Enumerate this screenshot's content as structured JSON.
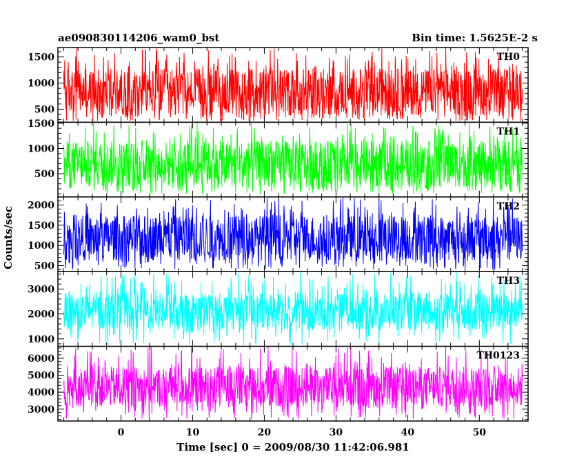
{
  "header": {
    "left": "ae090830114206_wam0_bst",
    "right": "Bin time: 1.5625E-2 s"
  },
  "chart_data": {
    "type": "line",
    "title": "ae090830114206_wam0_bst",
    "subtitle": "Bin time: 1.5625E-2 s",
    "xlabel": "Time [sec] 0 = 2009/08/30 11:42:06.981",
    "ylabel": "Counts/sec",
    "xlim": [
      -8.8,
      56.8
    ],
    "x_data_range": [
      -8.0,
      56.0
    ],
    "bin_time": 0.015625,
    "x_ticks": [
      0,
      10,
      20,
      30,
      40,
      50
    ],
    "x_tick_labels": [
      "0",
      "10",
      "20",
      "30",
      "40",
      "50"
    ],
    "grid": false,
    "panels": [
      {
        "name": "TH0",
        "color": "#ff0000",
        "ylim": [
          250,
          1680
        ],
        "y_ticks": [
          500,
          1000,
          1500
        ],
        "y_tick_labels": [
          "500",
          "1000",
          "1500"
        ],
        "typical_range": [
          380,
          1280
        ],
        "min": 270,
        "max": 1680
      },
      {
        "name": "TH1",
        "color": "#00ff00",
        "ylim": [
          40,
          1520
        ],
        "y_ticks": [
          500,
          1000,
          1500
        ],
        "y_tick_labels": [
          "500",
          "1000",
          "1500"
        ],
        "typical_range": [
          230,
          1150
        ],
        "min": 90,
        "max": 1520
      },
      {
        "name": "TH2",
        "color": "#0000ff",
        "ylim": [
          350,
          2200
        ],
        "y_ticks": [
          500,
          1000,
          1500,
          2000
        ],
        "y_tick_labels": [
          "500",
          "1000",
          "1500",
          "2000"
        ],
        "typical_range": [
          620,
          1750
        ],
        "min": 400,
        "max": 2200
      },
      {
        "name": "TH3",
        "color": "#00ffff",
        "ylim": [
          700,
          3700
        ],
        "y_ticks": [
          1000,
          2000,
          3000
        ],
        "y_tick_labels": [
          "1000",
          "2000",
          "3000"
        ],
        "typical_range": [
          1350,
          2850
        ],
        "min": 750,
        "max": 3700
      },
      {
        "name": "TH0123",
        "color": "#ff00ff",
        "ylim": [
          2300,
          6700
        ],
        "y_ticks": [
          3000,
          4000,
          5000,
          6000
        ],
        "y_tick_labels": [
          "3000",
          "4000",
          "5000",
          "6000"
        ],
        "typical_range": [
          3100,
          5500
        ],
        "min": 2400,
        "max": 6700
      }
    ]
  }
}
